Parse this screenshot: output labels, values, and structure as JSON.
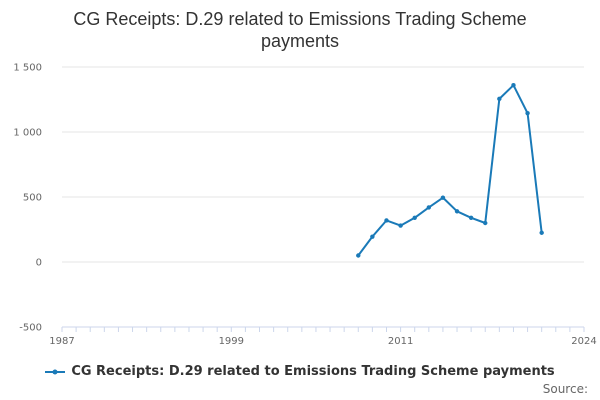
{
  "chart_data": {
    "type": "line",
    "title": "CG Receipts: D.29 related to Emissions Trading Scheme payments",
    "xlabel": "",
    "ylabel": "",
    "xlim": [
      1987,
      2024
    ],
    "ylim": [
      -500,
      1500
    ],
    "x_ticks": [
      1987,
      1999,
      2011,
      2024
    ],
    "y_ticks": [
      -500,
      0,
      500,
      1000,
      1500
    ],
    "y_tick_labels": [
      "-500",
      "0",
      "500",
      "1 000",
      "1 500"
    ],
    "grid": true,
    "legend_position": "bottom",
    "series": [
      {
        "name": "CG Receipts: D.29 related to Emissions Trading Scheme payments",
        "color": "#1a7ab8",
        "x": [
          2008,
          2009,
          2010,
          2011,
          2012,
          2013,
          2014,
          2015,
          2016,
          2017,
          2018,
          2019,
          2020,
          2021,
          2022
        ],
        "y": [
          50,
          195,
          320,
          280,
          340,
          420,
          495,
          390,
          340,
          300,
          1255,
          1360,
          1145,
          225,
          null
        ]
      }
    ]
  },
  "source_label": "Source:"
}
